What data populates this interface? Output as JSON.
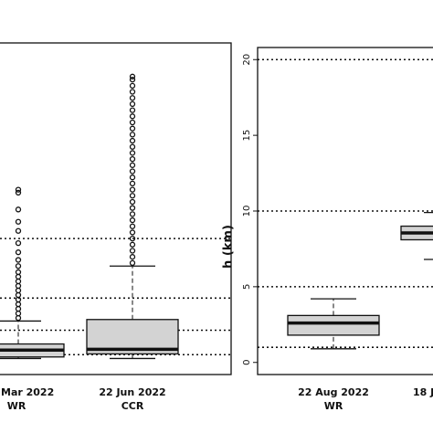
{
  "chart_data": [
    {
      "type": "boxplot",
      "categories": [
        "Mar 2022",
        "22 Jun 2022"
      ],
      "groups": [
        "WR",
        "CCR"
      ],
      "color": "#d3d3d3",
      "ylim": [
        -0.8,
        20.9
      ],
      "hlines": [
        8.1,
        4.2,
        2.1,
        0.5
      ],
      "boxes": [
        {
          "whisker_low": 0.25,
          "q1": 0.35,
          "median": 0.8,
          "q3": 1.2,
          "whisker_high": 2.7,
          "outliers": [
            2.9,
            3.2,
            3.5,
            3.8,
            4.1,
            4.4,
            4.7,
            5.0,
            5.3,
            5.6,
            5.9,
            6.3,
            6.7,
            7.2,
            7.8,
            8.6,
            9.2,
            10.0,
            11.1,
            11.3
          ]
        },
        {
          "whisker_low": 0.25,
          "q1": 0.55,
          "median": 0.85,
          "q3": 2.8,
          "whisker_high": 6.3,
          "outliers": [
            6.5,
            6.9,
            7.3,
            7.7,
            8.1,
            8.5,
            8.9,
            9.3,
            9.7,
            10.1,
            10.5,
            10.9,
            11.3,
            11.7,
            12.1,
            12.5,
            12.9,
            13.3,
            13.7,
            14.1,
            14.5,
            14.9,
            15.3,
            15.7,
            16.1,
            16.5,
            16.9,
            17.3,
            17.7,
            18.1,
            18.5,
            18.7
          ]
        }
      ]
    },
    {
      "type": "boxplot",
      "categories": [
        "22 Aug 2022",
        "18 J"
      ],
      "groups": [
        "WR",
        null
      ],
      "ylabel": "h (km)",
      "color": "#d3d3d3",
      "ylim": [
        -0.8,
        20.8
      ],
      "yticks": [
        0,
        5,
        10,
        15,
        20
      ],
      "hlines": [
        20,
        10,
        5,
        1
      ],
      "boxes": [
        {
          "whisker_low": 0.9,
          "q1": 1.8,
          "median": 2.6,
          "q3": 3.1,
          "whisker_high": 4.2,
          "outliers": []
        },
        {
          "whisker_low": 6.8,
          "q1": 8.1,
          "median": 8.55,
          "q3": 9.0,
          "whisker_high": 9.9,
          "outliers": []
        }
      ]
    }
  ]
}
